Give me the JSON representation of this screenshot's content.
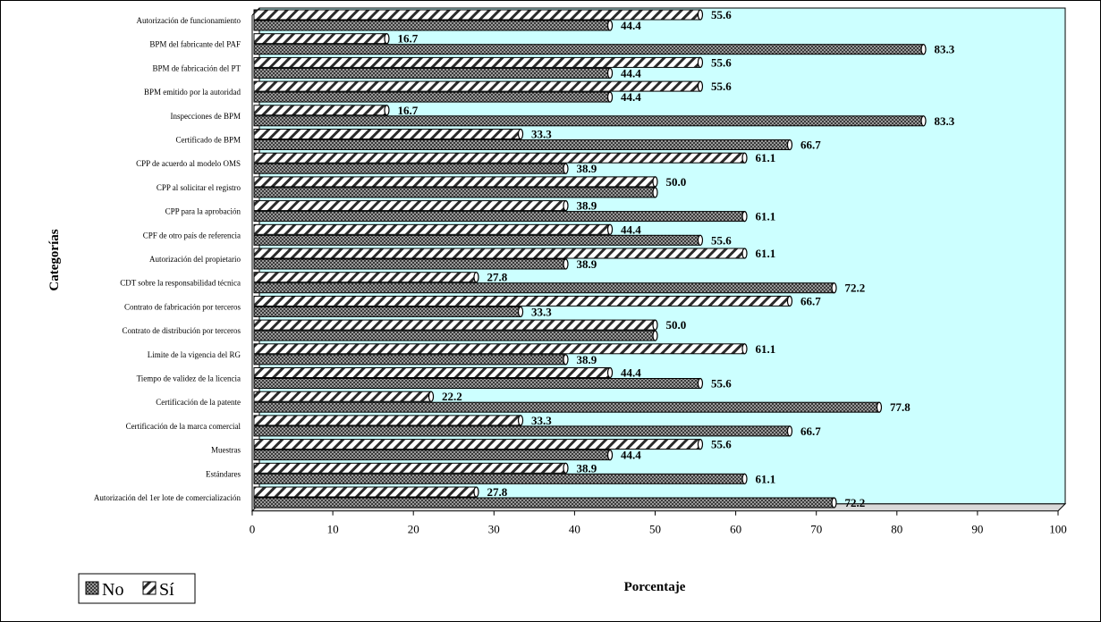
{
  "chart_data": {
    "type": "bar",
    "orientation": "horizontal",
    "xlabel": "Porcentaje",
    "ylabel": "Categorías",
    "xlim": [
      0,
      100
    ],
    "xticks": [
      0,
      10,
      20,
      30,
      40,
      50,
      60,
      70,
      80,
      90,
      100
    ],
    "legend_position": "bottom-left",
    "plot_background": "#ccffff",
    "categories": [
      "Autorización de funcionamiento",
      "BPM del fabricante del PAF",
      "BPM de fabricación del PT",
      "BPM emitido por la autoridad",
      "Inspecciones de BPM",
      "Certificado de BPM",
      "CPP de acuerdo al modelo OMS",
      "CPP al solicitar el registro",
      "CPP para la aprobación",
      "CPF de otro país de referencia",
      "Autorización del propietario",
      "CDT sobre la responsabilidad técnica",
      "Contrato de fabricación por terceros",
      "Contrato de distribución por terceros",
      "Limite de la vigencia del RG",
      "Tiempo de validez de la licencia",
      "Certificación de la patente",
      "Certificación de la marca comercial",
      "Muestras",
      "Estándares",
      "Autorización  del 1er lote de  comercialización"
    ],
    "series": [
      {
        "name": "Sí",
        "pattern": "diagonal-hatch",
        "values": [
          55.6,
          16.7,
          55.6,
          55.6,
          16.7,
          33.3,
          61.1,
          50.0,
          38.9,
          44.4,
          61.1,
          27.8,
          66.7,
          50.0,
          61.1,
          44.4,
          22.2,
          33.3,
          55.6,
          38.9,
          27.8
        ],
        "labels": [
          "55.6",
          "16.7",
          "55.6",
          "55.6",
          "16.7",
          "33.3",
          "61.1",
          "50.0",
          "38.9",
          "44.4",
          "61.1",
          "27.8",
          "66.7",
          "50.0",
          "61.1",
          "44.4",
          "22.2",
          "33.3",
          "55.6",
          "38.9",
          "27.8"
        ]
      },
      {
        "name": "No",
        "pattern": "checker",
        "values": [
          44.4,
          83.3,
          44.4,
          44.4,
          83.3,
          66.7,
          38.9,
          50.0,
          61.1,
          55.6,
          38.9,
          72.2,
          33.3,
          50.0,
          38.9,
          55.6,
          77.8,
          66.7,
          44.4,
          61.1,
          72.2
        ],
        "labels": [
          "44.4",
          "83.3",
          "44.4",
          "44.4",
          "83.3",
          "66.7",
          "38.9",
          "",
          "61.1",
          "55.6",
          "38.9",
          "72.2",
          "33.3",
          "",
          "38.9",
          "55.6",
          "77.8",
          "66.7",
          "44.4",
          "61.1",
          "72.2"
        ]
      }
    ],
    "legend": [
      "No",
      "Sí"
    ]
  }
}
